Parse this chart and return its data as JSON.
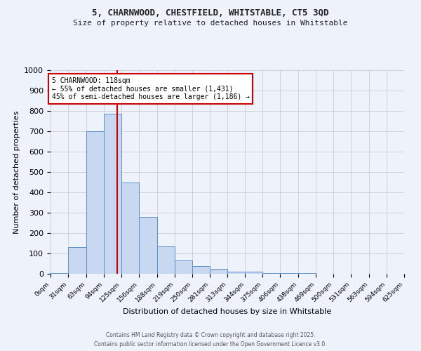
{
  "title_line1": "5, CHARNWOOD, CHESTFIELD, WHITSTABLE, CT5 3QD",
  "title_line2": "Size of property relative to detached houses in Whitstable",
  "xlabel": "Distribution of detached houses by size in Whitstable",
  "ylabel": "Number of detached properties",
  "bar_color": "#c8d8f0",
  "bar_edge_color": "#5b8fc9",
  "bin_edges": [
    0,
    31,
    63,
    94,
    125,
    156,
    188,
    219,
    250,
    281,
    313,
    344,
    375,
    406,
    438,
    469,
    500,
    531,
    563,
    594,
    625
  ],
  "bar_heights": [
    5,
    130,
    700,
    785,
    450,
    280,
    135,
    65,
    38,
    25,
    12,
    10,
    5,
    2,
    2,
    0,
    0,
    0,
    0,
    0
  ],
  "property_size": 118,
  "vline_color": "#cc0000",
  "annotation_text": "5 CHARNWOOD: 118sqm\n← 55% of detached houses are smaller (1,431)\n45% of semi-detached houses are larger (1,186) →",
  "annotation_box_color": "#ffffff",
  "annotation_border_color": "#cc0000",
  "ylim": [
    0,
    1000
  ],
  "yticks": [
    0,
    100,
    200,
    300,
    400,
    500,
    600,
    700,
    800,
    900,
    1000
  ],
  "grid_color": "#cccccc",
  "background_color": "#eef2fb",
  "footer_line1": "Contains HM Land Registry data © Crown copyright and database right 2025.",
  "footer_line2": "Contains public sector information licensed under the Open Government Licence v3.0.",
  "tick_labels": [
    "0sqm",
    "31sqm",
    "63sqm",
    "94sqm",
    "125sqm",
    "156sqm",
    "188sqm",
    "219sqm",
    "250sqm",
    "281sqm",
    "313sqm",
    "344sqm",
    "375sqm",
    "406sqm",
    "438sqm",
    "469sqm",
    "500sqm",
    "531sqm",
    "563sqm",
    "594sqm",
    "625sqm"
  ]
}
